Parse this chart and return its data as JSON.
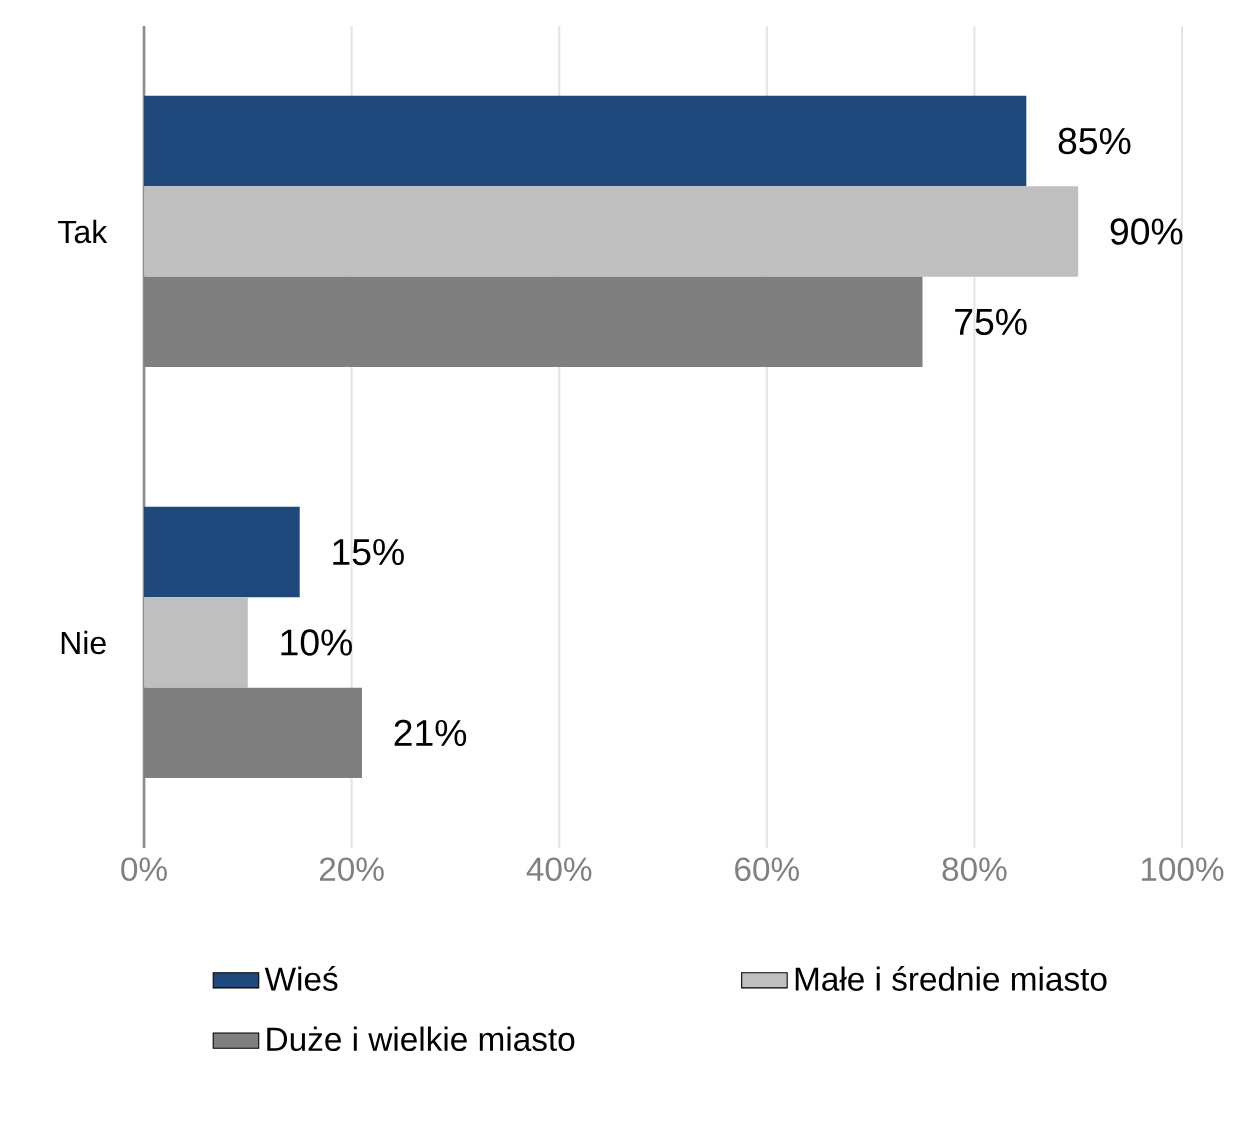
{
  "chart_data": {
    "type": "bar",
    "orientation": "horizontal",
    "categories": [
      "Tak",
      "Nie"
    ],
    "series": [
      {
        "name": "Wieś",
        "color": "#1f497d",
        "values": [
          85,
          15
        ],
        "value_labels": [
          "85%",
          "15%"
        ]
      },
      {
        "name": "Małe i średnie miasto",
        "color": "#bfbfbf",
        "values": [
          90,
          10
        ],
        "value_labels": [
          "90%",
          "10%"
        ]
      },
      {
        "name": "Duże i wielkie miasto",
        "color": "#7f7f7f",
        "values": [
          75,
          21
        ],
        "value_labels": [
          "75%",
          "21%"
        ]
      }
    ],
    "xlim": [
      0,
      100
    ],
    "xticks": [
      {
        "value": 0,
        "label": "0%"
      },
      {
        "value": 20,
        "label": "20%"
      },
      {
        "value": 40,
        "label": "40%"
      },
      {
        "value": 60,
        "label": "60%"
      },
      {
        "value": 80,
        "label": "80%"
      },
      {
        "value": 100,
        "label": "100%"
      }
    ],
    "grid": "x",
    "legend": "bottom"
  }
}
